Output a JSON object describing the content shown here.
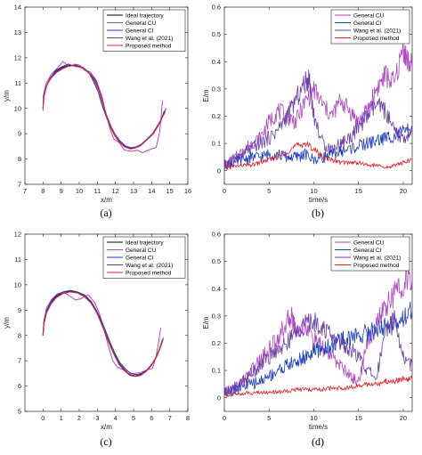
{
  "chart_data": [
    {
      "panel": "(a)",
      "type": "line",
      "xlabel": "x/m",
      "ylabel": "y/m",
      "xlim": [
        7,
        16
      ],
      "ylim": [
        7,
        14
      ],
      "xticks": [
        7,
        8,
        9,
        10,
        11,
        12,
        13,
        14,
        15,
        16
      ],
      "yticks": [
        7,
        8,
        9,
        10,
        11,
        12,
        13,
        14
      ],
      "grid": false,
      "legend_position": "top-right",
      "series": [
        {
          "name": "Ideal trajectory",
          "color": "#000000",
          "x": [
            8.0,
            8.05,
            8.2,
            8.4,
            8.7,
            9.0,
            9.4,
            9.8,
            10.2,
            10.55,
            10.85,
            11.1,
            11.3,
            11.5,
            11.7,
            11.95,
            12.2,
            12.5,
            12.8,
            13.1,
            13.4,
            13.7,
            14.0,
            14.25,
            14.5,
            14.7
          ],
          "y": [
            10.0,
            10.5,
            10.9,
            11.2,
            11.45,
            11.6,
            11.7,
            11.7,
            11.6,
            11.4,
            11.1,
            10.7,
            10.2,
            9.7,
            9.3,
            8.95,
            8.7,
            8.5,
            8.42,
            8.45,
            8.55,
            8.75,
            8.95,
            9.2,
            9.5,
            9.9
          ]
        },
        {
          "name": "General CU",
          "color": "#b04ac0",
          "x": [
            8.0,
            8.02,
            8.15,
            8.45,
            8.8,
            9.1,
            9.45,
            9.75,
            10.05,
            10.3,
            10.6,
            10.95,
            11.25,
            11.45,
            11.7,
            11.9,
            12.2,
            12.5,
            12.9,
            13.2,
            13.5,
            13.8,
            14.0,
            14.25,
            14.45,
            14.6
          ],
          "y": [
            9.9,
            10.5,
            10.95,
            11.35,
            11.6,
            11.85,
            11.65,
            11.75,
            11.7,
            11.5,
            11.45,
            11.1,
            10.5,
            9.85,
            9.2,
            8.8,
            8.65,
            8.35,
            8.3,
            8.35,
            8.25,
            8.35,
            8.4,
            8.45,
            9.1,
            10.3
          ]
        },
        {
          "name": "General CI",
          "color": "#1f3fbf",
          "x": [
            8.0,
            8.05,
            8.2,
            8.45,
            8.7,
            9.05,
            9.4,
            9.8,
            10.2,
            10.5,
            10.8,
            11.05,
            11.25,
            11.5,
            11.75,
            12.0,
            12.3,
            12.6,
            12.9,
            13.2,
            13.5,
            13.8,
            14.1,
            14.35,
            14.55,
            14.8
          ],
          "y": [
            10.1,
            10.55,
            10.9,
            11.25,
            11.5,
            11.65,
            11.75,
            11.65,
            11.62,
            11.45,
            11.05,
            10.65,
            10.15,
            9.65,
            9.25,
            8.9,
            8.65,
            8.48,
            8.4,
            8.5,
            8.6,
            8.8,
            9.0,
            9.3,
            9.6,
            10.0
          ]
        },
        {
          "name": "Wang et al. (2021)",
          "color": "#6a3fa8",
          "x": [
            8.0,
            8.05,
            8.2,
            8.45,
            8.75,
            9.05,
            9.45,
            9.85,
            10.25,
            10.6,
            10.9,
            11.1,
            11.3,
            11.5,
            11.75,
            12.0,
            12.25,
            12.55,
            12.85,
            13.15,
            13.45,
            13.75,
            14.05,
            14.3,
            14.55,
            14.75
          ],
          "y": [
            10.0,
            10.45,
            10.9,
            11.2,
            11.42,
            11.55,
            11.68,
            11.72,
            11.58,
            11.38,
            11.12,
            10.72,
            10.25,
            9.75,
            9.3,
            8.95,
            8.72,
            8.52,
            8.45,
            8.48,
            8.6,
            8.8,
            9.0,
            9.3,
            9.6,
            9.85
          ]
        },
        {
          "name": "Proposed method",
          "color": "#e8202a",
          "x": [
            8.0,
            8.05,
            8.2,
            8.4,
            8.7,
            9.0,
            9.4,
            9.8,
            10.2,
            10.55,
            10.85,
            11.1,
            11.3,
            11.5,
            11.7,
            11.95,
            12.2,
            12.5,
            12.8,
            13.1,
            13.4,
            13.7,
            14.0,
            14.25,
            14.5,
            14.7
          ],
          "y": [
            10.0,
            10.48,
            10.88,
            11.18,
            11.42,
            11.57,
            11.68,
            11.68,
            11.58,
            11.38,
            11.08,
            10.68,
            10.18,
            9.68,
            9.28,
            8.93,
            8.68,
            8.48,
            8.4,
            8.43,
            8.53,
            8.73,
            8.93,
            9.18,
            9.48,
            9.85
          ]
        }
      ]
    },
    {
      "panel": "(b)",
      "type": "line",
      "xlabel": "time/s",
      "ylabel": "E/m",
      "xlim": [
        0,
        21
      ],
      "ylim": [
        -0.05,
        0.6
      ],
      "xticks": [
        0,
        5,
        10,
        15,
        20
      ],
      "yticks": [
        0,
        0.1,
        0.2,
        0.3,
        0.4,
        0.5,
        0.6
      ],
      "grid": false,
      "legend_position": "top-right",
      "series": [
        {
          "name": "General CU",
          "color": "#b04ac0",
          "x": [
            0,
            1,
            2,
            3,
            4,
            5,
            6,
            7,
            8,
            9,
            10,
            11,
            12,
            13,
            14,
            15,
            16,
            17,
            18,
            19,
            20,
            20.5,
            21
          ],
          "y": [
            0.02,
            0.04,
            0.07,
            0.1,
            0.12,
            0.18,
            0.22,
            0.2,
            0.18,
            0.25,
            0.3,
            0.24,
            0.2,
            0.26,
            0.22,
            0.18,
            0.22,
            0.3,
            0.35,
            0.32,
            0.45,
            0.4,
            0.38
          ]
        },
        {
          "name": "General CI",
          "color": "#1f3fbf",
          "x": [
            0,
            1,
            2,
            3,
            4,
            5,
            6,
            7,
            8,
            9,
            10,
            11,
            12,
            13,
            14,
            15,
            16,
            17,
            18,
            19,
            20,
            21
          ],
          "y": [
            0.02,
            0.03,
            0.04,
            0.05,
            0.05,
            0.06,
            0.06,
            0.05,
            0.05,
            0.06,
            0.04,
            0.05,
            0.06,
            0.07,
            0.08,
            0.09,
            0.1,
            0.11,
            0.12,
            0.13,
            0.14,
            0.15
          ]
        },
        {
          "name": "Wang et al. (2021)",
          "color": "#6a3fa8",
          "x": [
            0,
            1,
            2,
            3,
            4,
            5,
            6,
            7,
            8,
            9,
            9.5,
            10,
            11,
            12,
            13,
            14,
            15,
            16,
            17,
            18,
            19,
            20,
            21
          ],
          "y": [
            0.02,
            0.04,
            0.06,
            0.08,
            0.1,
            0.12,
            0.15,
            0.2,
            0.26,
            0.32,
            0.34,
            0.2,
            0.1,
            0.08,
            0.1,
            0.12,
            0.16,
            0.2,
            0.24,
            0.22,
            0.14,
            0.12,
            0.14
          ]
        },
        {
          "name": "Proposed method",
          "color": "#e8202a",
          "x": [
            0,
            1,
            2,
            3,
            4,
            5,
            6,
            7,
            8,
            9,
            10,
            11,
            12,
            13,
            14,
            15,
            16,
            17,
            18,
            19,
            20,
            21
          ],
          "y": [
            0.01,
            0.015,
            0.02,
            0.02,
            0.03,
            0.04,
            0.05,
            0.07,
            0.09,
            0.1,
            0.08,
            0.05,
            0.04,
            0.03,
            0.03,
            0.03,
            0.02,
            0.02,
            0.01,
            0.02,
            0.03,
            0.04
          ]
        }
      ]
    },
    {
      "panel": "(c)",
      "type": "line",
      "xlabel": "x/m",
      "ylabel": "y/m",
      "xlim": [
        -1,
        8
      ],
      "ylim": [
        5,
        12
      ],
      "xticks": [
        0,
        1,
        2,
        3,
        4,
        5,
        6,
        7,
        8
      ],
      "yticks": [
        5,
        6,
        7,
        8,
        9,
        10,
        11,
        12
      ],
      "grid": false,
      "legend_position": "top-right",
      "series": [
        {
          "name": "Ideal trajectory",
          "color": "#000000",
          "x": [
            0.0,
            0.05,
            0.2,
            0.45,
            0.75,
            1.1,
            1.5,
            1.9,
            2.3,
            2.65,
            2.95,
            3.2,
            3.45,
            3.7,
            3.95,
            4.2,
            4.5,
            4.8,
            5.1,
            5.4,
            5.7,
            6.0,
            6.25,
            6.45,
            6.6
          ],
          "y": [
            8.0,
            8.5,
            8.95,
            9.3,
            9.55,
            9.7,
            9.75,
            9.7,
            9.55,
            9.3,
            8.95,
            8.55,
            8.1,
            7.65,
            7.25,
            6.9,
            6.65,
            6.45,
            6.4,
            6.45,
            6.6,
            6.85,
            7.15,
            7.5,
            7.85
          ]
        },
        {
          "name": "General CU",
          "color": "#b04ac0",
          "x": [
            0.0,
            0.05,
            0.2,
            0.5,
            0.8,
            1.15,
            1.5,
            1.8,
            2.1,
            2.5,
            2.85,
            3.1,
            3.35,
            3.6,
            3.85,
            4.1,
            4.4,
            4.75,
            5.1,
            5.45,
            5.8,
            6.05,
            6.25,
            6.4,
            6.5
          ],
          "y": [
            8.0,
            8.6,
            9.1,
            9.45,
            9.65,
            9.7,
            9.55,
            9.4,
            9.45,
            9.6,
            9.3,
            8.9,
            8.3,
            7.6,
            7.0,
            6.75,
            6.65,
            6.5,
            6.5,
            6.55,
            6.65,
            6.7,
            7.2,
            7.8,
            8.3
          ]
        },
        {
          "name": "General CI",
          "color": "#1f3fbf",
          "x": [
            0.0,
            0.05,
            0.2,
            0.45,
            0.75,
            1.1,
            1.5,
            1.9,
            2.3,
            2.65,
            2.95,
            3.25,
            3.5,
            3.75,
            4.0,
            4.25,
            4.55,
            4.85,
            5.15,
            5.45,
            5.75,
            6.05,
            6.3,
            6.5,
            6.65
          ],
          "y": [
            8.05,
            8.55,
            9.0,
            9.35,
            9.6,
            9.72,
            9.78,
            9.72,
            9.6,
            9.35,
            9.0,
            8.55,
            8.1,
            7.65,
            7.25,
            6.92,
            6.68,
            6.5,
            6.45,
            6.5,
            6.65,
            6.9,
            7.2,
            7.55,
            7.9
          ]
        },
        {
          "name": "Wang et al. (2021)",
          "color": "#6a3fa8",
          "x": [
            0.0,
            0.05,
            0.2,
            0.45,
            0.75,
            1.1,
            1.5,
            1.9,
            2.3,
            2.65,
            2.95,
            3.2,
            3.45,
            3.7,
            3.95,
            4.2,
            4.5,
            4.8,
            5.1,
            5.4,
            5.7,
            6.0,
            6.25,
            6.45,
            6.6
          ],
          "y": [
            8.0,
            8.45,
            8.9,
            9.25,
            9.5,
            9.65,
            9.72,
            9.68,
            9.52,
            9.28,
            8.92,
            8.5,
            8.05,
            7.6,
            7.2,
            6.85,
            6.6,
            6.42,
            6.38,
            6.42,
            6.58,
            6.82,
            7.12,
            7.48,
            7.8
          ]
        },
        {
          "name": "Proposed method",
          "color": "#e8202a",
          "x": [
            0.0,
            0.05,
            0.2,
            0.45,
            0.75,
            1.1,
            1.5,
            1.9,
            2.3,
            2.65,
            2.95,
            3.2,
            3.45,
            3.7,
            3.95,
            4.2,
            4.5,
            4.8,
            5.1,
            5.4,
            5.7,
            6.0,
            6.25,
            6.45,
            6.6
          ],
          "y": [
            8.0,
            8.48,
            8.92,
            9.28,
            9.52,
            9.68,
            9.73,
            9.68,
            9.53,
            9.28,
            8.93,
            8.53,
            8.08,
            7.63,
            7.23,
            6.88,
            6.63,
            6.43,
            6.38,
            6.43,
            6.58,
            6.83,
            7.13,
            7.48,
            7.83
          ]
        }
      ]
    },
    {
      "panel": "(d)",
      "type": "line",
      "xlabel": "time/s",
      "ylabel": "E/m",
      "xlim": [
        0,
        21
      ],
      "ylim": [
        -0.05,
        0.6
      ],
      "xticks": [
        0,
        5,
        10,
        15,
        20
      ],
      "yticks": [
        0,
        0.1,
        0.2,
        0.3,
        0.4,
        0.5,
        0.6
      ],
      "grid": false,
      "legend_position": "top-right",
      "series": [
        {
          "name": "General CU",
          "color": "#b04ac0",
          "x": [
            0,
            1,
            2,
            3,
            4,
            5,
            6,
            7,
            7.5,
            8,
            9,
            10,
            11,
            12,
            13,
            14,
            15,
            16,
            17,
            18,
            19,
            20,
            21
          ],
          "y": [
            0.02,
            0.04,
            0.06,
            0.1,
            0.14,
            0.18,
            0.22,
            0.28,
            0.3,
            0.25,
            0.26,
            0.22,
            0.18,
            0.15,
            0.12,
            0.08,
            0.06,
            0.2,
            0.28,
            0.33,
            0.38,
            0.42,
            0.44
          ]
        },
        {
          "name": "General CI",
          "color": "#1f3fbf",
          "x": [
            0,
            1,
            2,
            3,
            4,
            5,
            6,
            7,
            8,
            9,
            10,
            11,
            12,
            13,
            14,
            15,
            16,
            17,
            18,
            19,
            20,
            21
          ],
          "y": [
            0.02,
            0.03,
            0.04,
            0.05,
            0.06,
            0.08,
            0.1,
            0.12,
            0.13,
            0.15,
            0.17,
            0.18,
            0.19,
            0.21,
            0.22,
            0.23,
            0.24,
            0.25,
            0.26,
            0.27,
            0.3,
            0.32
          ]
        },
        {
          "name": "Wang et al. (2021)",
          "color": "#6a3fa8",
          "x": [
            0,
            1,
            2,
            3,
            4,
            5,
            6,
            7,
            8,
            9,
            10,
            11,
            12,
            13,
            14,
            15,
            16,
            17,
            18,
            19,
            20,
            21
          ],
          "y": [
            0.02,
            0.03,
            0.06,
            0.09,
            0.12,
            0.15,
            0.18,
            0.2,
            0.24,
            0.27,
            0.28,
            0.26,
            0.22,
            0.2,
            0.18,
            0.15,
            0.1,
            0.07,
            0.25,
            0.3,
            0.15,
            0.12
          ]
        },
        {
          "name": "Proposed method",
          "color": "#e8202a",
          "x": [
            0,
            1,
            2,
            3,
            4,
            5,
            6,
            7,
            8,
            9,
            10,
            11,
            12,
            13,
            14,
            15,
            16,
            17,
            18,
            19,
            20,
            21
          ],
          "y": [
            0.01,
            0.012,
            0.015,
            0.018,
            0.02,
            0.02,
            0.02,
            0.025,
            0.03,
            0.03,
            0.03,
            0.03,
            0.035,
            0.035,
            0.04,
            0.04,
            0.05,
            0.05,
            0.06,
            0.06,
            0.07,
            0.07
          ]
        }
      ]
    }
  ]
}
